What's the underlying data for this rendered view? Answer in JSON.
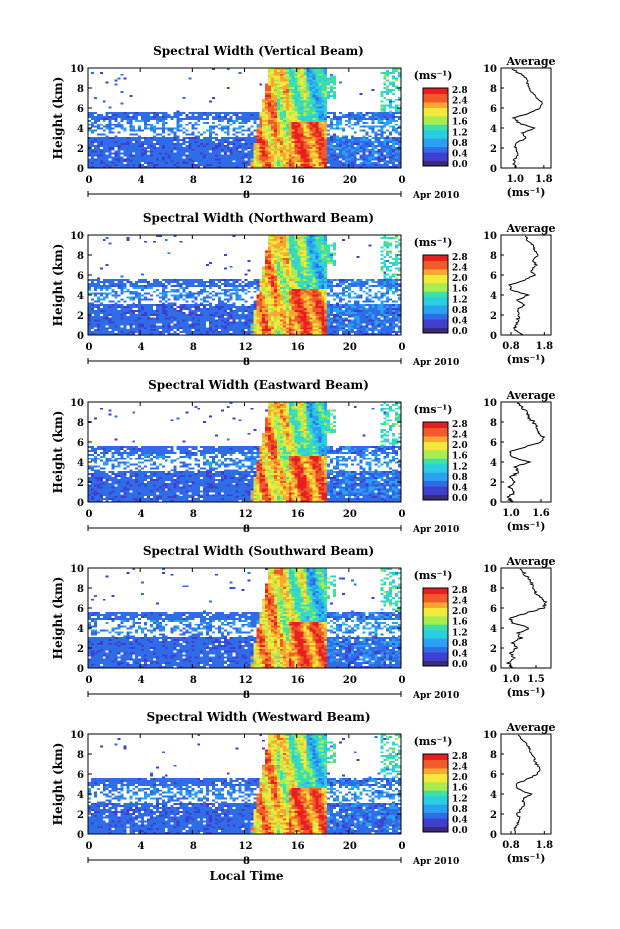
{
  "figure": {
    "xlabel": "Local Time",
    "date_label": "Apr 2010",
    "day_label": "8",
    "unit_label": "(ms⁻¹)",
    "side_title": "Average",
    "side_unit": "(ms⁻¹)"
  },
  "colors": {
    "scale": [
      "#3a2a78",
      "#3f3fd0",
      "#2f6ce8",
      "#2aa0f0",
      "#29cfe0",
      "#3fe0a8",
      "#a8ec50",
      "#f4e83a",
      "#f8a830",
      "#f25a2a",
      "#e62020"
    ]
  },
  "chart_data": [
    {
      "type": "heatmap",
      "title": "Spectral Width (Vertical Beam)",
      "ylabel": "Height (km)",
      "xlim": [
        0,
        24
      ],
      "ylim": [
        0,
        10
      ],
      "x_ticks": [
        "0",
        "4",
        "8",
        "12",
        "16",
        "20",
        "0"
      ],
      "y_ticks": [
        "0",
        "2",
        "4",
        "6",
        "8",
        "10"
      ],
      "colorbar": {
        "range": [
          0,
          2.8
        ],
        "ticks": [
          "2.8",
          "2.4",
          "2.0",
          "1.6",
          "1.2",
          "0.8",
          "0.4",
          "0.0"
        ]
      },
      "grid": false,
      "profile": {
        "type": "line",
        "x_ticks": [
          "1.0",
          "1.8"
        ],
        "xlim": [
          0.6,
          2.0
        ],
        "heights": [
          0,
          0.5,
          1,
          1.5,
          2,
          2.5,
          3,
          3.5,
          4,
          4.5,
          5,
          5.5,
          6,
          6.5,
          7,
          7.5,
          8,
          8.5,
          9,
          9.5,
          10
        ],
        "values": [
          1.05,
          0.95,
          1.0,
          1.1,
          1.0,
          1.05,
          1.3,
          1.2,
          1.55,
          1.1,
          0.95,
          1.4,
          1.7,
          1.75,
          1.6,
          1.5,
          1.4,
          1.35,
          1.3,
          1.1,
          0.9
        ]
      }
    },
    {
      "type": "heatmap",
      "title": "Spectral Width (Northward Beam)",
      "ylabel": "Height (km)",
      "xlim": [
        0,
        24
      ],
      "ylim": [
        0,
        10
      ],
      "x_ticks": [
        "0",
        "4",
        "8",
        "12",
        "16",
        "20",
        "0"
      ],
      "y_ticks": [
        "0",
        "2",
        "4",
        "6",
        "8",
        "10"
      ],
      "colorbar": {
        "range": [
          0,
          2.8
        ],
        "ticks": [
          "2.8",
          "2.4",
          "2.0",
          "1.6",
          "1.2",
          "0.8",
          "0.4",
          "0.0"
        ]
      },
      "grid": false,
      "profile": {
        "type": "line",
        "x_ticks": [
          "0.8",
          "1.8"
        ],
        "xlim": [
          0.5,
          2.0
        ],
        "heights": [
          0,
          0.5,
          1,
          1.5,
          2,
          2.5,
          3,
          3.5,
          4,
          4.5,
          5,
          5.5,
          6,
          6.5,
          7,
          7.5,
          8,
          8.5,
          9,
          9.5,
          10
        ],
        "values": [
          1.2,
          0.9,
          0.95,
          1.0,
          1.05,
          1.0,
          1.2,
          1.0,
          1.3,
          0.8,
          0.75,
          1.2,
          1.5,
          1.4,
          1.55,
          1.45,
          1.6,
          1.5,
          1.45,
          1.3,
          1.2
        ]
      }
    },
    {
      "type": "heatmap",
      "title": "Spectral Width (Eastward Beam)",
      "ylabel": "Height (km)",
      "xlim": [
        0,
        24
      ],
      "ylim": [
        0,
        10
      ],
      "x_ticks": [
        "0",
        "4",
        "8",
        "12",
        "16",
        "20",
        "0"
      ],
      "y_ticks": [
        "0",
        "2",
        "4",
        "6",
        "8",
        "10"
      ],
      "colorbar": {
        "range": [
          0,
          2.8
        ],
        "ticks": [
          "2.8",
          "2.4",
          "2.0",
          "1.6",
          "1.2",
          "0.8",
          "0.4",
          "0.0"
        ]
      },
      "grid": false,
      "profile": {
        "type": "line",
        "x_ticks": [
          "1.0",
          "1.6"
        ],
        "xlim": [
          0.8,
          1.8
        ],
        "heights": [
          0,
          0.5,
          1,
          1.5,
          2,
          2.5,
          3,
          3.5,
          4,
          4.5,
          5,
          5.5,
          6,
          6.5,
          7,
          7.5,
          8,
          8.5,
          9,
          9.5,
          10
        ],
        "values": [
          1.0,
          0.95,
          1.1,
          0.98,
          1.05,
          1.0,
          1.15,
          1.1,
          1.35,
          1.05,
          0.95,
          1.3,
          1.6,
          1.65,
          1.55,
          1.5,
          1.45,
          1.35,
          1.3,
          1.2,
          1.1
        ]
      }
    },
    {
      "type": "heatmap",
      "title": "Spectral Width (Southward Beam)",
      "ylabel": "Height (km)",
      "xlim": [
        0,
        24
      ],
      "ylim": [
        0,
        10
      ],
      "x_ticks": [
        "0",
        "4",
        "8",
        "12",
        "16",
        "20",
        "0"
      ],
      "y_ticks": [
        "0",
        "2",
        "4",
        "6",
        "8",
        "10"
      ],
      "colorbar": {
        "range": [
          0,
          2.8
        ],
        "ticks": [
          "2.8",
          "2.4",
          "2.0",
          "1.6",
          "1.2",
          "0.8",
          "0.4",
          "0.0"
        ]
      },
      "grid": false,
      "profile": {
        "type": "line",
        "x_ticks": [
          "1.0",
          "1.5"
        ],
        "xlim": [
          0.8,
          1.8
        ],
        "heights": [
          0,
          0.5,
          1,
          1.5,
          2,
          2.5,
          3,
          3.5,
          4,
          4.5,
          5,
          5.5,
          6,
          6.5,
          7,
          7.5,
          8,
          8.5,
          9,
          9.5,
          10
        ],
        "values": [
          1.0,
          0.95,
          1.05,
          1.0,
          1.1,
          1.05,
          1.2,
          1.15,
          1.35,
          1.05,
          0.95,
          1.3,
          1.65,
          1.7,
          1.6,
          1.5,
          1.45,
          1.4,
          1.35,
          1.25,
          1.15
        ]
      }
    },
    {
      "type": "heatmap",
      "title": "Spectral Width (Westward Beam)",
      "ylabel": "Height (km)",
      "xlim": [
        0,
        24
      ],
      "ylim": [
        0,
        10
      ],
      "x_ticks": [
        "0",
        "4",
        "8",
        "12",
        "16",
        "20",
        "0"
      ],
      "y_ticks": [
        "0",
        "2",
        "4",
        "6",
        "8",
        "10"
      ],
      "colorbar": {
        "range": [
          0,
          2.8
        ],
        "ticks": [
          "2.8",
          "2.4",
          "2.0",
          "1.6",
          "1.2",
          "0.8",
          "0.4",
          "0.0"
        ]
      },
      "grid": false,
      "profile": {
        "type": "line",
        "x_ticks": [
          "0.8",
          "1.8"
        ],
        "xlim": [
          0.5,
          2.0
        ],
        "heights": [
          0,
          0.5,
          1,
          1.5,
          2,
          2.5,
          3,
          3.5,
          4,
          4.5,
          5,
          5.5,
          6,
          6.5,
          7,
          7.5,
          8,
          8.5,
          9,
          9.5,
          10
        ],
        "values": [
          0.95,
          0.9,
          1.0,
          1.05,
          1.0,
          1.1,
          1.2,
          1.15,
          1.4,
          1.0,
          0.95,
          1.3,
          1.6,
          1.7,
          1.55,
          1.5,
          1.4,
          1.35,
          1.3,
          1.1,
          1.0
        ]
      }
    }
  ]
}
